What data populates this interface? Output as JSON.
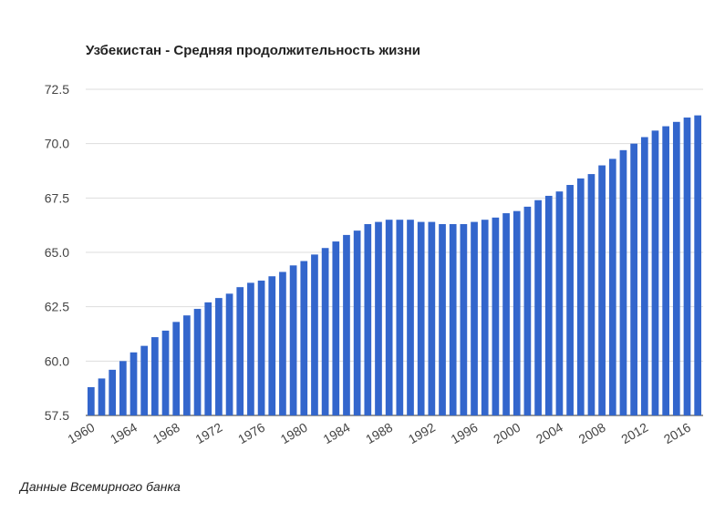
{
  "chart_data": {
    "type": "bar",
    "title": "Узбекистан - Средняя продолжительность жизни",
    "xlabel": "",
    "ylabel": "",
    "ylim": [
      57.5,
      72.5
    ],
    "yticks": [
      "57.5",
      "60.0",
      "62.5",
      "65.0",
      "67.5",
      "70.0",
      "72.5"
    ],
    "xtick_labels": [
      "1960",
      "1964",
      "1968",
      "1972",
      "1976",
      "1980",
      "1984",
      "1988",
      "1992",
      "1996",
      "2000",
      "2004",
      "2008",
      "2012",
      "2016"
    ],
    "grid": true,
    "bar_color": "#3366cc",
    "categories": [
      "1960",
      "1961",
      "1962",
      "1963",
      "1964",
      "1965",
      "1966",
      "1967",
      "1968",
      "1969",
      "1970",
      "1971",
      "1972",
      "1973",
      "1974",
      "1975",
      "1976",
      "1977",
      "1978",
      "1979",
      "1980",
      "1981",
      "1982",
      "1983",
      "1984",
      "1985",
      "1986",
      "1987",
      "1988",
      "1989",
      "1990",
      "1991",
      "1992",
      "1993",
      "1994",
      "1995",
      "1996",
      "1997",
      "1998",
      "1999",
      "2000",
      "2001",
      "2002",
      "2003",
      "2004",
      "2005",
      "2006",
      "2007",
      "2008",
      "2009",
      "2010",
      "2011",
      "2012",
      "2013",
      "2014",
      "2015",
      "2016",
      "2017"
    ],
    "values": [
      58.8,
      59.2,
      59.6,
      60.0,
      60.4,
      60.7,
      61.1,
      61.4,
      61.8,
      62.1,
      62.4,
      62.7,
      62.9,
      63.1,
      63.4,
      63.6,
      63.7,
      63.9,
      64.1,
      64.4,
      64.6,
      64.9,
      65.2,
      65.5,
      65.8,
      66.0,
      66.3,
      66.4,
      66.5,
      66.5,
      66.5,
      66.4,
      66.4,
      66.3,
      66.3,
      66.3,
      66.4,
      66.5,
      66.6,
      66.8,
      66.9,
      67.1,
      67.4,
      67.6,
      67.8,
      68.1,
      68.4,
      68.6,
      69.0,
      69.3,
      69.7,
      70.0,
      70.3,
      70.6,
      70.8,
      71.0,
      71.2,
      71.3
    ]
  },
  "footer": {
    "source": "Данные Всемирного банка"
  }
}
